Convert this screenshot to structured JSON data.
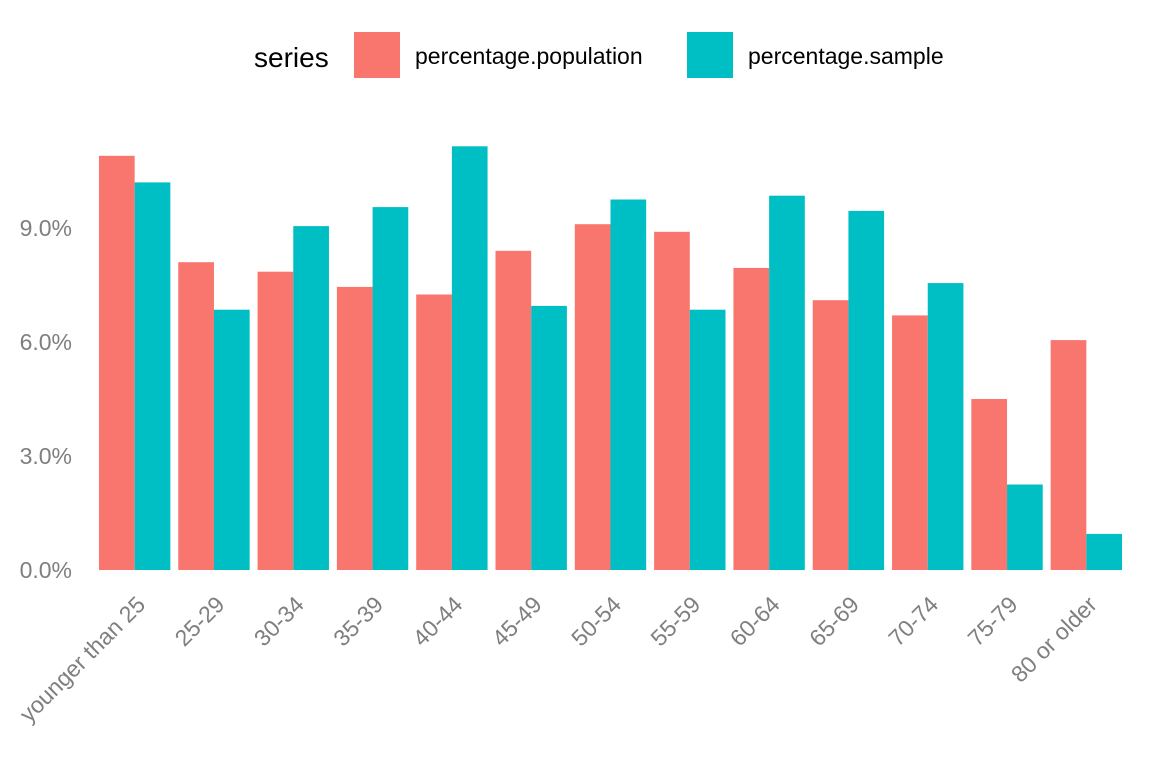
{
  "chart_data": {
    "type": "bar",
    "legend": {
      "title": "series",
      "placement": "top"
    },
    "categories": [
      "younger than 25",
      "25-29",
      "30-34",
      "35-39",
      "40-44",
      "45-49",
      "50-54",
      "55-59",
      "60-64",
      "65-69",
      "70-74",
      "75-79",
      "80 or older"
    ],
    "series": [
      {
        "name": "percentage.population",
        "color": "#f8766d",
        "values": [
          10.9,
          8.1,
          7.85,
          7.45,
          7.25,
          8.4,
          9.1,
          8.9,
          7.95,
          7.1,
          6.7,
          4.5,
          6.05
        ]
      },
      {
        "name": "percentage.sample",
        "color": "#00bfc4",
        "values": [
          10.2,
          6.85,
          9.05,
          9.55,
          11.15,
          6.95,
          9.75,
          6.85,
          9.85,
          9.45,
          7.55,
          2.25,
          0.95
        ]
      }
    ],
    "y_ticks": [
      0,
      3,
      6,
      9
    ],
    "y_tick_labels": [
      "0.0%",
      "3.0%",
      "6.0%",
      "9.0%"
    ],
    "ylim": [
      0,
      11.3
    ],
    "grid": false
  }
}
